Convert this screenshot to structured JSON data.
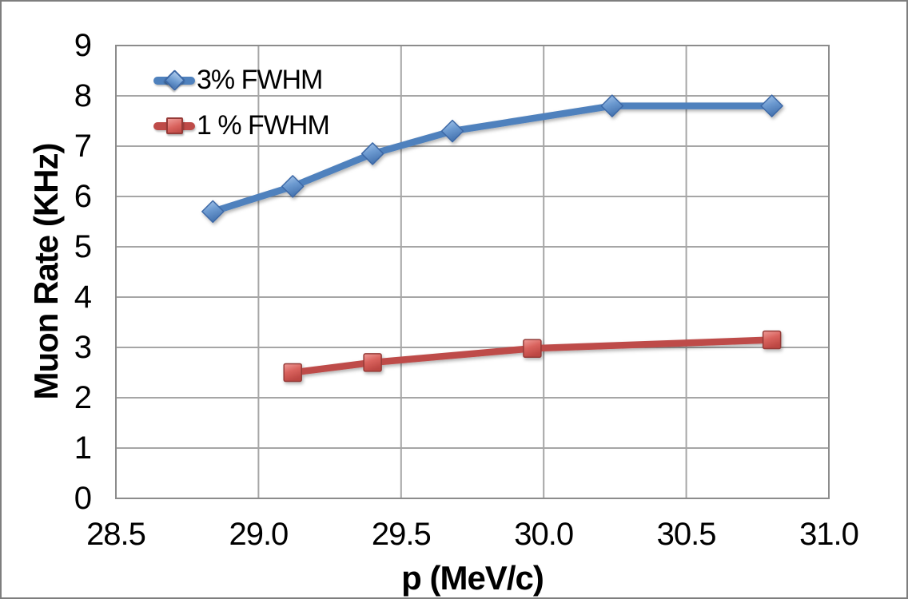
{
  "chart_data": {
    "type": "line",
    "title": "",
    "xlabel": "p (MeV/c)",
    "ylabel": "Muon Rate (KHz)",
    "xlim": [
      28.5,
      31.0
    ],
    "ylim": [
      0,
      9
    ],
    "x_tick_labels": [
      "28.5",
      "29.0",
      "29.5",
      "30.0",
      "30.5",
      "31.0"
    ],
    "x_tick_values": [
      28.5,
      29.0,
      29.5,
      30.0,
      30.5,
      31.0
    ],
    "y_tick_labels": [
      "0",
      "1",
      "2",
      "3",
      "4",
      "5",
      "6",
      "7",
      "8",
      "9"
    ],
    "y_tick_values": [
      0,
      1,
      2,
      3,
      4,
      5,
      6,
      7,
      8,
      9
    ],
    "grid": true,
    "grid_color": "#a6a6a6",
    "plot_border_color": "#8c8c8c",
    "legend_position": "top-left-inside",
    "series": [
      {
        "name": "3% FWHM",
        "marker": "diamond",
        "color": "#4f81bd",
        "marker_colors": {
          "light": "#aecbec",
          "mid": "#6d9bd1",
          "dark": "#4674b0",
          "border": "#3c68a6"
        },
        "x": [
          28.84,
          29.12,
          29.4,
          29.68,
          30.24,
          30.8
        ],
        "y": [
          5.7,
          6.2,
          6.85,
          7.3,
          7.8,
          7.8
        ]
      },
      {
        "name": "1 % FWHM",
        "marker": "square",
        "color": "#be4b48",
        "marker_colors": {
          "light": "#ee9c98",
          "mid": "#d9625d",
          "dark": "#bc4743",
          "border": "#953a37"
        },
        "x": [
          29.12,
          29.4,
          29.96,
          30.8
        ],
        "y": [
          2.5,
          2.7,
          2.98,
          3.15
        ]
      }
    ]
  }
}
